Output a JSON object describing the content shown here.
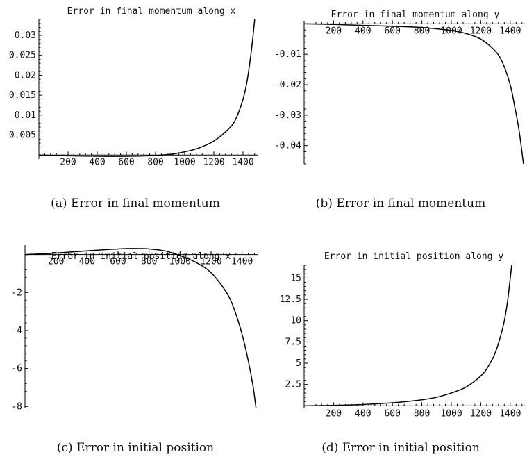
{
  "chart_data": [
    {
      "type": "line",
      "title": "Error in final momentum along x",
      "caption": "(a) Error in final momentum",
      "xlim": [
        0,
        1500
      ],
      "ylim": [
        -0.001,
        0.034
      ],
      "x_ticks": [
        200,
        400,
        600,
        800,
        1000,
        1200,
        1400
      ],
      "x_tick_labels": [
        "200",
        "400",
        "600",
        "800",
        "1000",
        "1200",
        "1400"
      ],
      "y_ticks": [
        0.005,
        0.01,
        0.015,
        0.02,
        0.025,
        0.03
      ],
      "y_tick_labels": [
        "0.005",
        "0.01",
        "0.015",
        "0.02",
        "0.025",
        "0.03"
      ],
      "series": [
        {
          "x": [
            0,
            200,
            400,
            600,
            800,
            900,
            1000,
            1100,
            1200,
            1300,
            1350,
            1400,
            1430,
            1460,
            1480
          ],
          "y": [
            0,
            -0.0002,
            -0.0003,
            -0.0003,
            -0.0001,
            0.0002,
            0.0008,
            0.0018,
            0.0035,
            0.0065,
            0.009,
            0.014,
            0.019,
            0.027,
            0.034
          ]
        }
      ]
    },
    {
      "type": "line",
      "title": "Error in final momentum along y",
      "caption": "(b) Error in final momentum",
      "xlim": [
        0,
        1500
      ],
      "ylim": [
        -0.046,
        0.001
      ],
      "x_ticks": [
        200,
        400,
        600,
        800,
        1000,
        1200,
        1400
      ],
      "x_tick_labels": [
        "200",
        "400",
        "600",
        "800",
        "1000",
        "1200",
        "1400"
      ],
      "y_ticks": [
        -0.01,
        -0.02,
        -0.03,
        -0.04
      ],
      "y_tick_labels": [
        "-0.01",
        "-0.02",
        "-0.03",
        "-0.04"
      ],
      "series": [
        {
          "x": [
            0,
            200,
            400,
            600,
            800,
            1000,
            1100,
            1200,
            1300,
            1350,
            1400,
            1430,
            1460,
            1490
          ],
          "y": [
            0,
            -0.0002,
            -0.0005,
            -0.0008,
            -0.0012,
            -0.0022,
            -0.0032,
            -0.005,
            -0.009,
            -0.013,
            -0.02,
            -0.027,
            -0.035,
            -0.046
          ]
        }
      ]
    },
    {
      "type": "line",
      "title": "Error in initial position along x",
      "caption": "(c) Error in initial position",
      "xlim": [
        0,
        1500
      ],
      "ylim": [
        -8.1,
        0.5
      ],
      "x_ticks": [
        200,
        400,
        600,
        800,
        1000,
        1200,
        1400
      ],
      "x_tick_labels": [
        "200",
        "400",
        "600",
        "800",
        "1000",
        "1200",
        "1400"
      ],
      "y_ticks": [
        -2,
        -4,
        -6,
        -8
      ],
      "y_tick_labels": [
        "-2",
        "-4",
        "-6",
        "-8"
      ],
      "series": [
        {
          "x": [
            0,
            200,
            400,
            600,
            700,
            800,
            900,
            1000,
            1100,
            1200,
            1300,
            1350,
            1400,
            1440,
            1470,
            1490
          ],
          "y": [
            0,
            0.08,
            0.2,
            0.3,
            0.32,
            0.3,
            0.2,
            -0.05,
            -0.4,
            -0.95,
            -2.0,
            -2.9,
            -4.2,
            -5.6,
            -6.9,
            -8.1
          ]
        }
      ]
    },
    {
      "type": "line",
      "title": "Error in initial position along y",
      "caption": "(d) Error in initial position",
      "xlim": [
        0,
        1500
      ],
      "ylim": [
        -0.3,
        16.5
      ],
      "x_ticks": [
        200,
        400,
        600,
        800,
        1000,
        1200,
        1400
      ],
      "x_tick_labels": [
        "200",
        "400",
        "600",
        "800",
        "1000",
        "1200",
        "1400"
      ],
      "y_ticks": [
        2.5,
        5,
        7.5,
        10,
        12.5,
        15
      ],
      "y_tick_labels": [
        "2.5",
        "5",
        "7.5",
        "10",
        "12.5",
        "15"
      ],
      "series": [
        {
          "x": [
            0,
            200,
            400,
            600,
            800,
            900,
            1000,
            1100,
            1200,
            1250,
            1300,
            1350,
            1380,
            1410
          ],
          "y": [
            0,
            0.05,
            0.15,
            0.35,
            0.7,
            1.0,
            1.5,
            2.2,
            3.5,
            4.6,
            6.3,
            9.2,
            12.0,
            16.5
          ]
        }
      ]
    }
  ]
}
